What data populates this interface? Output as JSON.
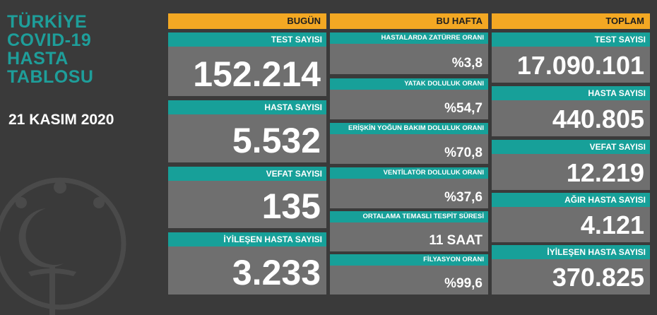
{
  "title": {
    "lines": [
      "TÜRKİYE",
      "COVID-19",
      "HASTA",
      "TABLOSU"
    ]
  },
  "date": "21 KASIM 2020",
  "columns": [
    {
      "header": "BUGÜN",
      "cards": [
        {
          "label": "TEST SAYISI",
          "value": "152.214"
        },
        {
          "label": "HASTA SAYISI",
          "value": "5.532"
        },
        {
          "label": "VEFAT SAYISI",
          "value": "135"
        },
        {
          "label": "İYİLEŞEN HASTA SAYISI",
          "value": "3.233"
        }
      ]
    },
    {
      "header": "BU HAFTA",
      "cards": [
        {
          "label": "HASTALARDA ZATÜRRE ORANI",
          "value": "%3,8"
        },
        {
          "label": "YATAK DOLULUK ORANI",
          "value": "%54,7"
        },
        {
          "label": "ERİŞKİN YOĞUN BAKIM DOLULUK ORANI",
          "value": "%70,8"
        },
        {
          "label": "VENTİLATÖR DOLULUK ORANI",
          "value": "%37,6"
        },
        {
          "label": "ORTALAMA TEMASLI TESPİT SÜRESİ",
          "value": "11 SAAT"
        },
        {
          "label": "FİLYASYON ORANI",
          "value": "%99,6"
        }
      ]
    },
    {
      "header": "TOPLAM",
      "cards": [
        {
          "label": "TEST SAYISI",
          "value": "17.090.101"
        },
        {
          "label": "HASTA SAYISI",
          "value": "440.805"
        },
        {
          "label": "VEFAT SAYISI",
          "value": "12.219"
        },
        {
          "label": "AĞIR HASTA SAYISI",
          "value": "4.121"
        },
        {
          "label": "İYİLEŞEN HASTA SAYISI",
          "value": "370.825"
        }
      ]
    }
  ],
  "colors": {
    "background": "#3a3a3a",
    "header": "#f3a823",
    "label": "#17a099",
    "card": "#6f6f6f",
    "title": "#1e9e9a"
  }
}
